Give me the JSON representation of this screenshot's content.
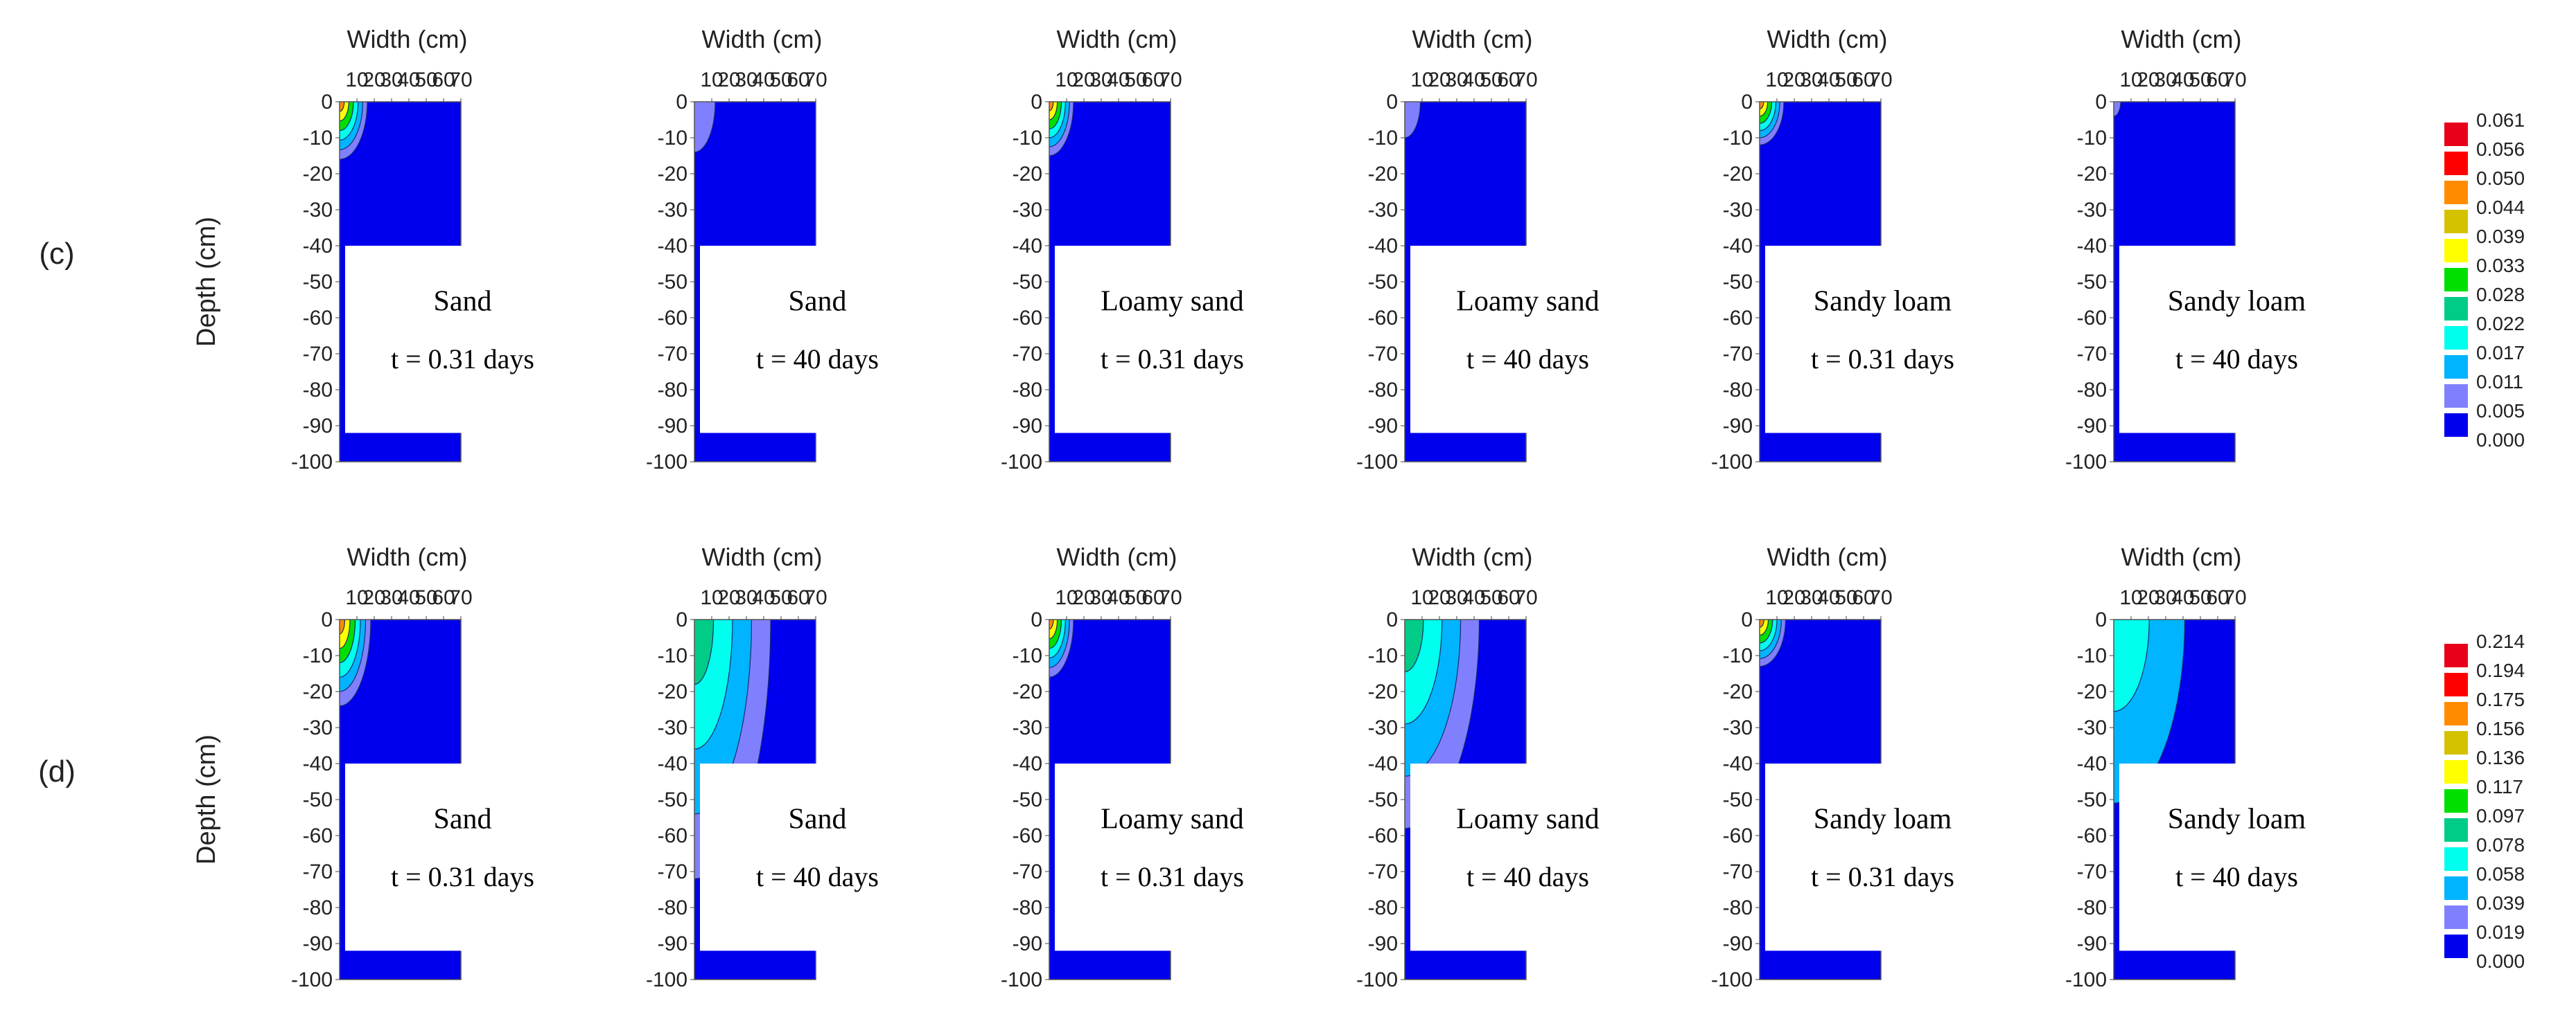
{
  "chart_data": {
    "type": "heatmap",
    "rows": [
      {
        "label": "(c)",
        "ylabel": "Depth (cm)",
        "legend": {
          "values": [
            "0.061",
            "0.056",
            "0.050",
            "0.044",
            "0.039",
            "0.033",
            "0.028",
            "0.022",
            "0.017",
            "0.011",
            "0.005",
            "0.000"
          ],
          "colors": [
            "#e8001a",
            "#ff0000",
            "#ff8c00",
            "#d4c200",
            "#ffff00",
            "#00e000",
            "#00cc88",
            "#00ffee",
            "#00b4ff",
            "#8080ff",
            "#0000ee"
          ]
        },
        "panels": [
          {
            "xlabel": "Width (cm)",
            "soil": "Sand",
            "time": "t = 0.31 days",
            "plume": {
              "rx": 16,
              "ry": 16,
              "levels": [
                0.8,
                0.5,
                0.25,
                0.07
              ]
            }
          },
          {
            "xlabel": "Width (cm)",
            "soil": "Sand",
            "time": "t = 40 days",
            "plume": {
              "rx": 12,
              "ry": 14,
              "levels": [
                0.11
              ]
            }
          },
          {
            "xlabel": "Width (cm)",
            "soil": "Loamy sand",
            "time": "t = 0.31 days",
            "plume": {
              "rx": 14,
              "ry": 15,
              "levels": [
                0.8,
                0.5,
                0.25,
                0.07
              ]
            }
          },
          {
            "xlabel": "Width (cm)",
            "soil": "Loamy sand",
            "time": "t = 40 days",
            "plume": {
              "rx": 9,
              "ry": 10,
              "levels": [
                0.11
              ]
            }
          },
          {
            "xlabel": "Width (cm)",
            "soil": "Sandy loam",
            "time": "t = 0.31 days",
            "plume": {
              "rx": 14,
              "ry": 12,
              "levels": [
                0.8,
                0.5,
                0.25,
                0.07
              ]
            }
          },
          {
            "xlabel": "Width (cm)",
            "soil": "Sandy loam",
            "time": "t = 40 days",
            "plume": {
              "rx": 4,
              "ry": 4,
              "levels": [
                0.11
              ]
            }
          }
        ]
      },
      {
        "label": "(d)",
        "ylabel": "Depth (cm)",
        "legend": {
          "values": [
            "0.214",
            "0.194",
            "0.175",
            "0.156",
            "0.136",
            "0.117",
            "0.097",
            "0.078",
            "0.058",
            "0.039",
            "0.019",
            "0.000"
          ],
          "colors": [
            "#e8001a",
            "#ff0000",
            "#ff8c00",
            "#d4c200",
            "#ffff00",
            "#00e000",
            "#00cc88",
            "#00ffee",
            "#00b4ff",
            "#8080ff",
            "#0000ee"
          ]
        },
        "panels": [
          {
            "xlabel": "Width (cm)",
            "soil": "Sand",
            "time": "t = 0.31 days",
            "plume": {
              "rx": 18,
              "ry": 24,
              "levels": [
                0.8,
                0.5,
                0.25,
                0.07
              ]
            }
          },
          {
            "xlabel": "Width (cm)",
            "soil": "Sand",
            "time": "t = 40 days",
            "plume": {
              "rx": 44,
              "ry": 72,
              "levels": [
                0.37,
                0.31,
                0.25,
                0.19
              ]
            }
          },
          {
            "xlabel": "Width (cm)",
            "soil": "Loamy sand",
            "time": "t = 0.31 days",
            "plume": {
              "rx": 14,
              "ry": 16,
              "levels": [
                0.8,
                0.5,
                0.25,
                0.07
              ]
            }
          },
          {
            "xlabel": "Width (cm)",
            "soil": "Loamy sand",
            "time": "t = 40 days",
            "plume": {
              "rx": 43,
              "ry": 58,
              "levels": [
                0.37,
                0.31,
                0.25,
                0.19
              ]
            }
          },
          {
            "xlabel": "Width (cm)",
            "soil": "Sandy loam",
            "time": "t = 0.31 days",
            "plume": {
              "rx": 15,
              "ry": 13,
              "levels": [
                0.8,
                0.5,
                0.25,
                0.07
              ]
            }
          },
          {
            "xlabel": "Width (cm)",
            "soil": "Sandy loam",
            "time": "t = 40 days",
            "plume": {
              "rx": 41,
              "ry": 51,
              "levels": [
                0.31,
                0.25
              ]
            }
          }
        ]
      }
    ],
    "x_ticks": [
      10,
      20,
      30,
      40,
      50,
      60,
      70
    ],
    "y_ticks": [
      0,
      -10,
      -20,
      -30,
      -40,
      -50,
      -60,
      -70,
      -80,
      -90,
      -100
    ],
    "xlim": [
      0,
      70
    ],
    "ylim": [
      -100,
      0
    ]
  }
}
